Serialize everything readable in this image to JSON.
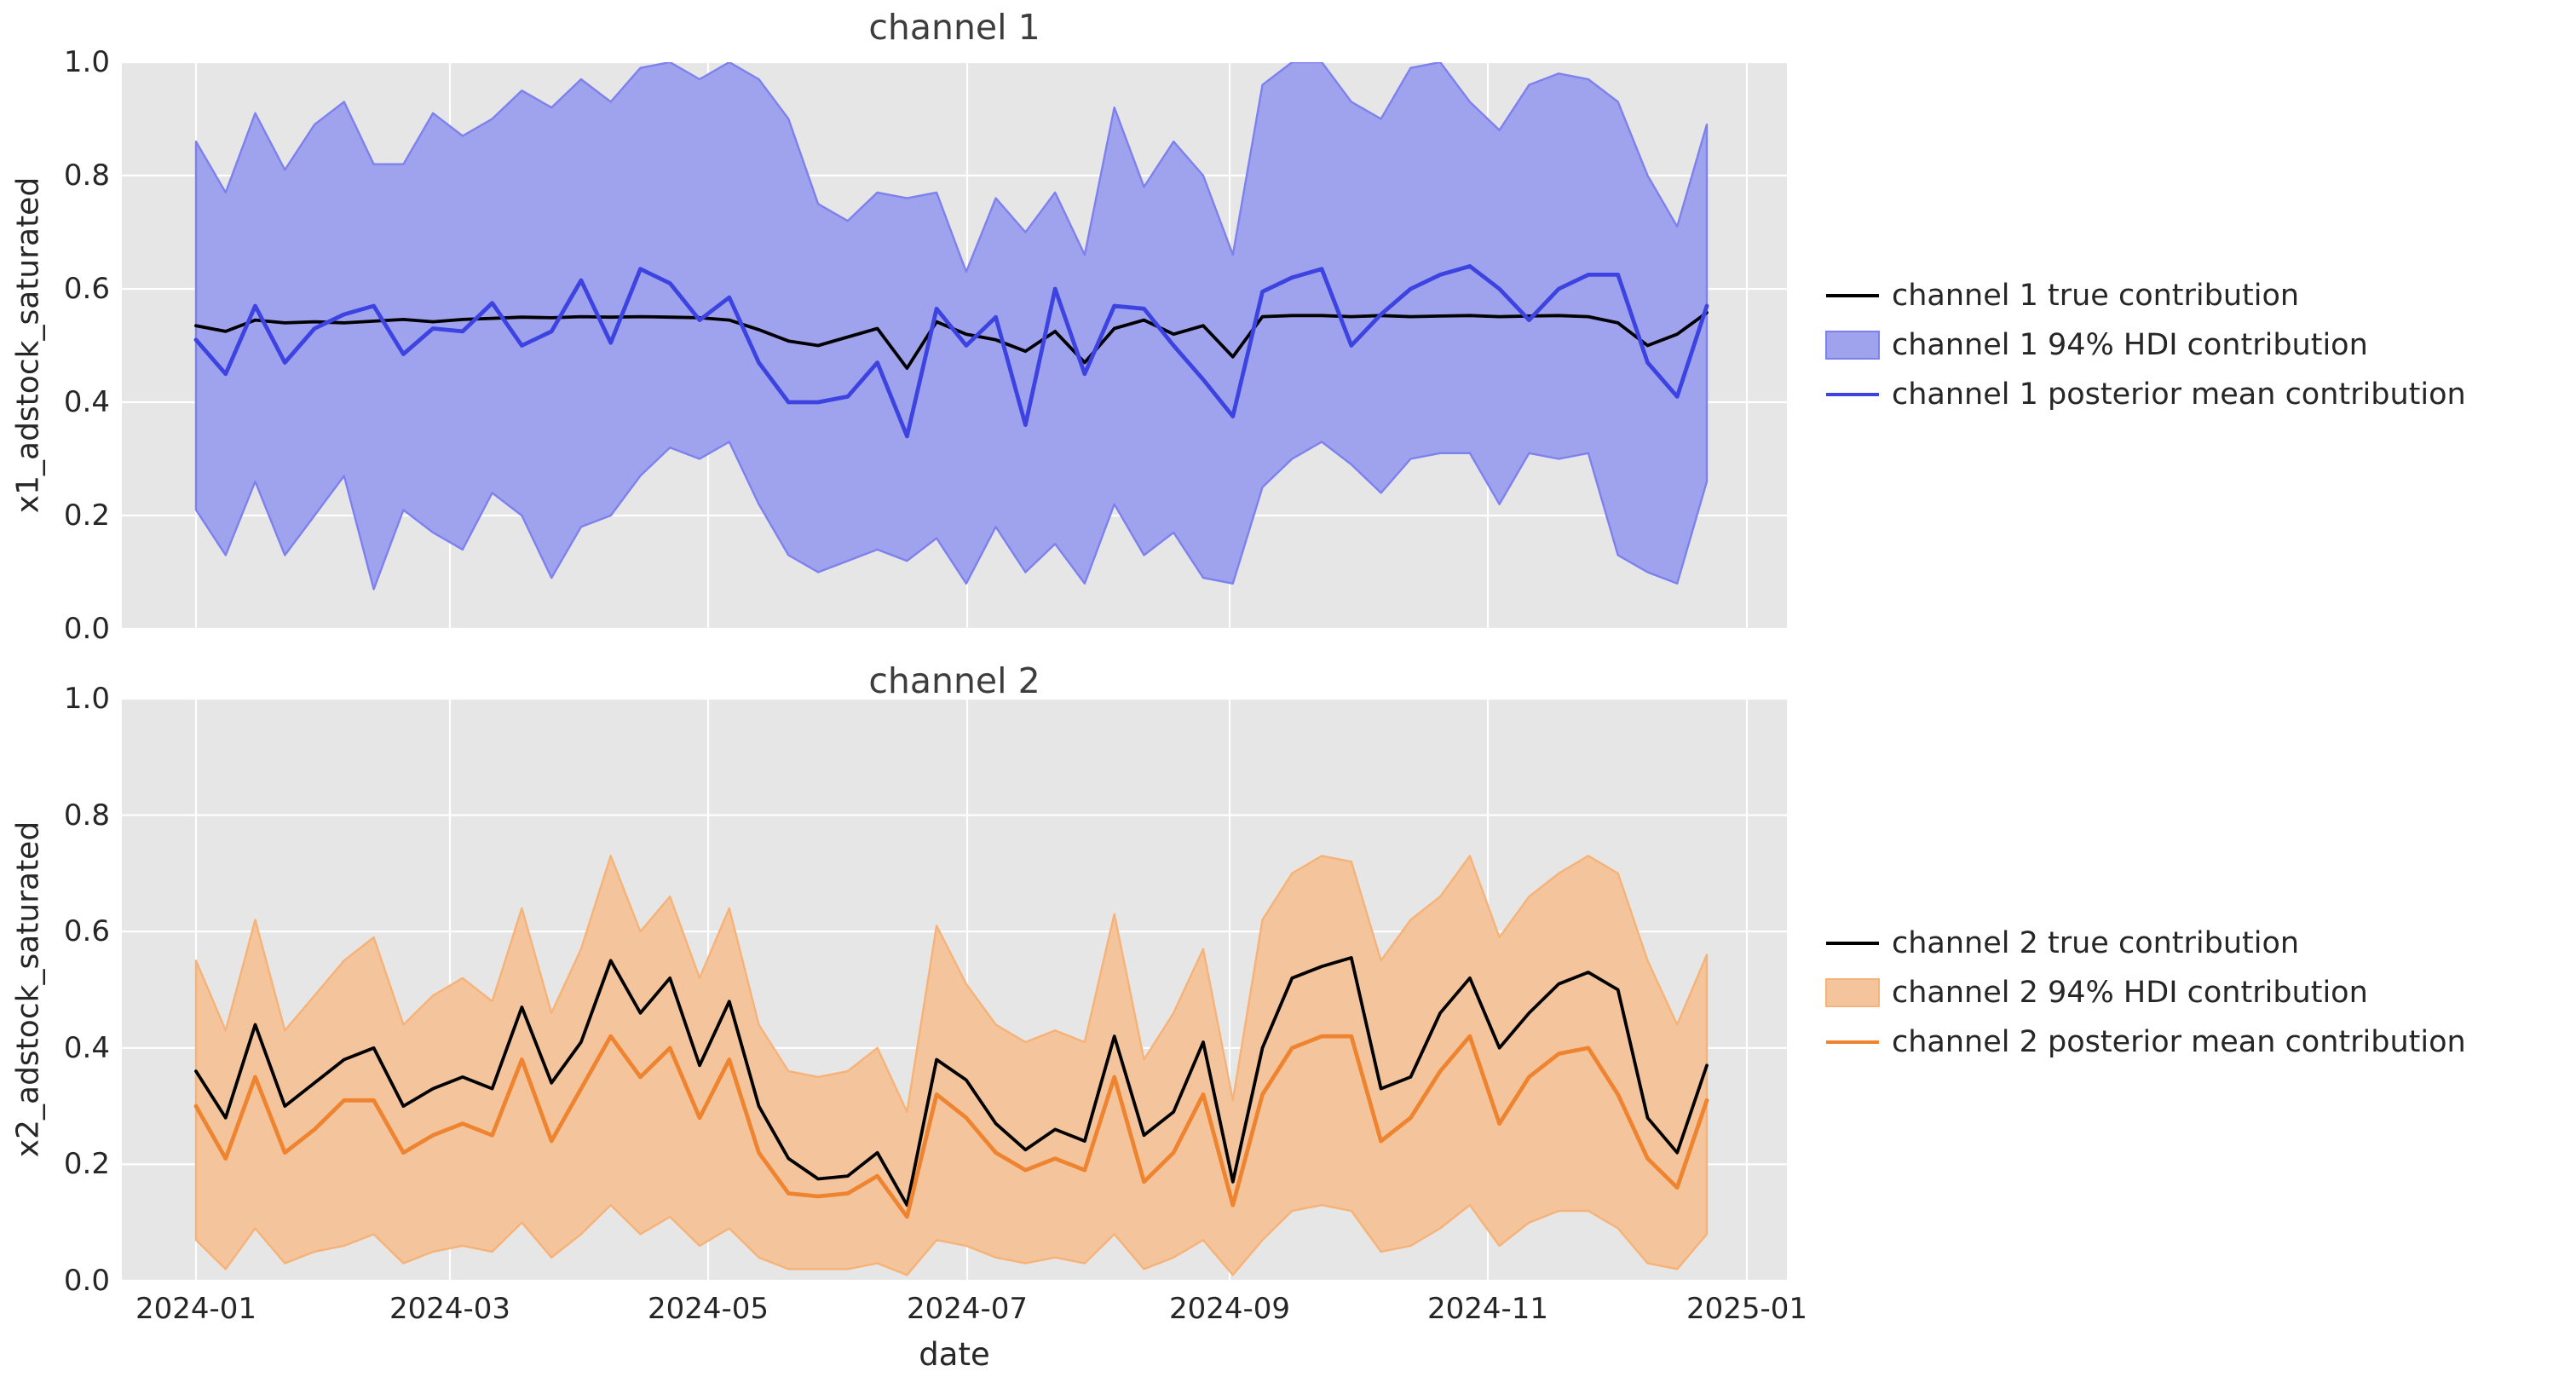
{
  "figure": {
    "background": "#ffffff",
    "axes_background": "#e6e6e6",
    "grid_color": "#ffffff"
  },
  "chart_data": {
    "type": "line",
    "grid": true,
    "x": {
      "label": "date",
      "tick_labels": [
        "2024-01",
        "2024-03",
        "2024-05",
        "2024-07",
        "2024-09",
        "2024-11",
        "2025-01"
      ],
      "dates": [
        "2024-01-01",
        "2024-01-08",
        "2024-01-15",
        "2024-01-22",
        "2024-01-29",
        "2024-02-05",
        "2024-02-12",
        "2024-02-19",
        "2024-02-26",
        "2024-03-04",
        "2024-03-11",
        "2024-03-18",
        "2024-03-25",
        "2024-04-01",
        "2024-04-08",
        "2024-04-15",
        "2024-04-22",
        "2024-04-29",
        "2024-05-06",
        "2024-05-13",
        "2024-05-20",
        "2024-05-27",
        "2024-06-03",
        "2024-06-10",
        "2024-06-17",
        "2024-06-24",
        "2024-07-01",
        "2024-07-08",
        "2024-07-15",
        "2024-07-22",
        "2024-07-29",
        "2024-08-05",
        "2024-08-12",
        "2024-08-19",
        "2024-08-26",
        "2024-09-02",
        "2024-09-09",
        "2024-09-16",
        "2024-09-23",
        "2024-09-30",
        "2024-10-07",
        "2024-10-14",
        "2024-10-21",
        "2024-10-28",
        "2024-11-04",
        "2024-11-11",
        "2024-11-18",
        "2024-11-25",
        "2024-12-02",
        "2024-12-09",
        "2024-12-16",
        "2024-12-23"
      ]
    },
    "ylim": [
      0.0,
      1.0
    ],
    "ytick_labels": [
      "0.0",
      "0.2",
      "0.4",
      "0.6",
      "0.8",
      "1.0"
    ],
    "ytick_values": [
      0.0,
      0.2,
      0.4,
      0.6,
      0.8,
      1.0
    ],
    "hdi_level": "94% HDI",
    "subplots": [
      {
        "title": "channel 1",
        "ylabel": "x1_adstock_saturated",
        "legend": [
          "channel 1 true contribution",
          "channel 1 94% HDI contribution",
          "channel 1 posterior mean contribution"
        ],
        "colors": {
          "true_line": "#000000",
          "mean_line": "#3d43e0",
          "band_fill": "#9fa2ec",
          "band_edge": "#7d81ee"
        },
        "series": {
          "true_contribution": [
            0.535,
            0.525,
            0.545,
            0.54,
            0.542,
            0.54,
            0.543,
            0.546,
            0.542,
            0.546,
            0.548,
            0.55,
            0.549,
            0.551,
            0.55,
            0.551,
            0.55,
            0.549,
            0.545,
            0.528,
            0.508,
            0.5,
            0.515,
            0.53,
            0.46,
            0.542,
            0.52,
            0.51,
            0.49,
            0.525,
            0.47,
            0.53,
            0.545,
            0.52,
            0.535,
            0.48,
            0.551,
            0.553,
            0.553,
            0.551,
            0.553,
            0.551,
            0.552,
            0.553,
            0.551,
            0.552,
            0.553,
            0.551,
            0.54,
            0.5,
            0.52,
            0.558
          ],
          "posterior_mean": [
            0.51,
            0.45,
            0.57,
            0.47,
            0.53,
            0.555,
            0.57,
            0.485,
            0.53,
            0.525,
            0.575,
            0.5,
            0.525,
            0.615,
            0.505,
            0.635,
            0.61,
            0.545,
            0.585,
            0.47,
            0.4,
            0.4,
            0.41,
            0.47,
            0.34,
            0.565,
            0.5,
            0.55,
            0.36,
            0.6,
            0.45,
            0.57,
            0.565,
            0.5,
            0.44,
            0.375,
            0.595,
            0.62,
            0.635,
            0.5,
            0.555,
            0.6,
            0.625,
            0.64,
            0.6,
            0.545,
            0.6,
            0.625,
            0.625,
            0.47,
            0.41,
            0.57
          ],
          "hdi_lower": [
            0.21,
            0.13,
            0.26,
            0.13,
            0.2,
            0.27,
            0.07,
            0.21,
            0.17,
            0.14,
            0.24,
            0.2,
            0.09,
            0.18,
            0.2,
            0.27,
            0.32,
            0.3,
            0.33,
            0.22,
            0.13,
            0.1,
            0.12,
            0.14,
            0.12,
            0.16,
            0.08,
            0.18,
            0.1,
            0.15,
            0.08,
            0.22,
            0.13,
            0.17,
            0.09,
            0.08,
            0.25,
            0.3,
            0.33,
            0.29,
            0.24,
            0.3,
            0.31,
            0.31,
            0.22,
            0.31,
            0.3,
            0.31,
            0.13,
            0.1,
            0.08,
            0.26
          ],
          "hdi_upper": [
            0.86,
            0.77,
            0.91,
            0.81,
            0.89,
            0.93,
            0.82,
            0.82,
            0.91,
            0.87,
            0.9,
            0.95,
            0.92,
            0.97,
            0.93,
            0.99,
            1.0,
            0.97,
            1.0,
            0.97,
            0.9,
            0.75,
            0.72,
            0.77,
            0.76,
            0.77,
            0.63,
            0.76,
            0.7,
            0.77,
            0.66,
            0.92,
            0.78,
            0.86,
            0.8,
            0.66,
            0.96,
            1.0,
            1.0,
            0.93,
            0.9,
            0.99,
            1.0,
            0.93,
            0.88,
            0.96,
            0.98,
            0.97,
            0.93,
            0.8,
            0.71,
            0.89
          ]
        }
      },
      {
        "title": "channel 2",
        "ylabel": "x2_adstock_saturated",
        "legend": [
          "channel 2 true contribution",
          "channel 2 94% HDI contribution",
          "channel 2 posterior mean contribution"
        ],
        "colors": {
          "true_line": "#000000",
          "mean_line": "#ef8430",
          "band_fill": "#f4c59c",
          "band_edge": "#f6b277"
        },
        "series": {
          "true_contribution": [
            0.36,
            0.28,
            0.44,
            0.3,
            0.34,
            0.38,
            0.4,
            0.3,
            0.33,
            0.35,
            0.33,
            0.47,
            0.34,
            0.41,
            0.55,
            0.46,
            0.52,
            0.37,
            0.48,
            0.3,
            0.21,
            0.175,
            0.18,
            0.22,
            0.13,
            0.38,
            0.345,
            0.27,
            0.225,
            0.26,
            0.24,
            0.42,
            0.25,
            0.29,
            0.41,
            0.17,
            0.4,
            0.52,
            0.54,
            0.555,
            0.33,
            0.35,
            0.46,
            0.52,
            0.4,
            0.46,
            0.51,
            0.53,
            0.5,
            0.28,
            0.22,
            0.37
          ],
          "posterior_mean": [
            0.3,
            0.21,
            0.35,
            0.22,
            0.26,
            0.31,
            0.31,
            0.22,
            0.25,
            0.27,
            0.25,
            0.38,
            0.24,
            0.33,
            0.42,
            0.35,
            0.4,
            0.28,
            0.38,
            0.22,
            0.15,
            0.145,
            0.15,
            0.18,
            0.11,
            0.32,
            0.28,
            0.22,
            0.19,
            0.21,
            0.19,
            0.35,
            0.17,
            0.22,
            0.32,
            0.13,
            0.32,
            0.4,
            0.42,
            0.42,
            0.24,
            0.28,
            0.36,
            0.42,
            0.27,
            0.35,
            0.39,
            0.4,
            0.32,
            0.21,
            0.16,
            0.31
          ],
          "hdi_lower": [
            0.07,
            0.02,
            0.09,
            0.03,
            0.05,
            0.06,
            0.08,
            0.03,
            0.05,
            0.06,
            0.05,
            0.1,
            0.04,
            0.08,
            0.13,
            0.08,
            0.11,
            0.06,
            0.09,
            0.04,
            0.02,
            0.02,
            0.02,
            0.03,
            0.01,
            0.07,
            0.06,
            0.04,
            0.03,
            0.04,
            0.03,
            0.08,
            0.02,
            0.04,
            0.07,
            0.01,
            0.07,
            0.12,
            0.13,
            0.12,
            0.05,
            0.06,
            0.09,
            0.13,
            0.06,
            0.1,
            0.12,
            0.12,
            0.09,
            0.03,
            0.02,
            0.08
          ],
          "hdi_upper": [
            0.55,
            0.43,
            0.62,
            0.43,
            0.49,
            0.55,
            0.59,
            0.44,
            0.49,
            0.52,
            0.48,
            0.64,
            0.46,
            0.57,
            0.73,
            0.6,
            0.66,
            0.52,
            0.64,
            0.44,
            0.36,
            0.35,
            0.36,
            0.4,
            0.29,
            0.61,
            0.51,
            0.44,
            0.41,
            0.43,
            0.41,
            0.63,
            0.38,
            0.46,
            0.57,
            0.31,
            0.62,
            0.7,
            0.73,
            0.72,
            0.55,
            0.62,
            0.66,
            0.73,
            0.59,
            0.66,
            0.7,
            0.73,
            0.7,
            0.55,
            0.44,
            0.56
          ]
        }
      }
    ]
  }
}
